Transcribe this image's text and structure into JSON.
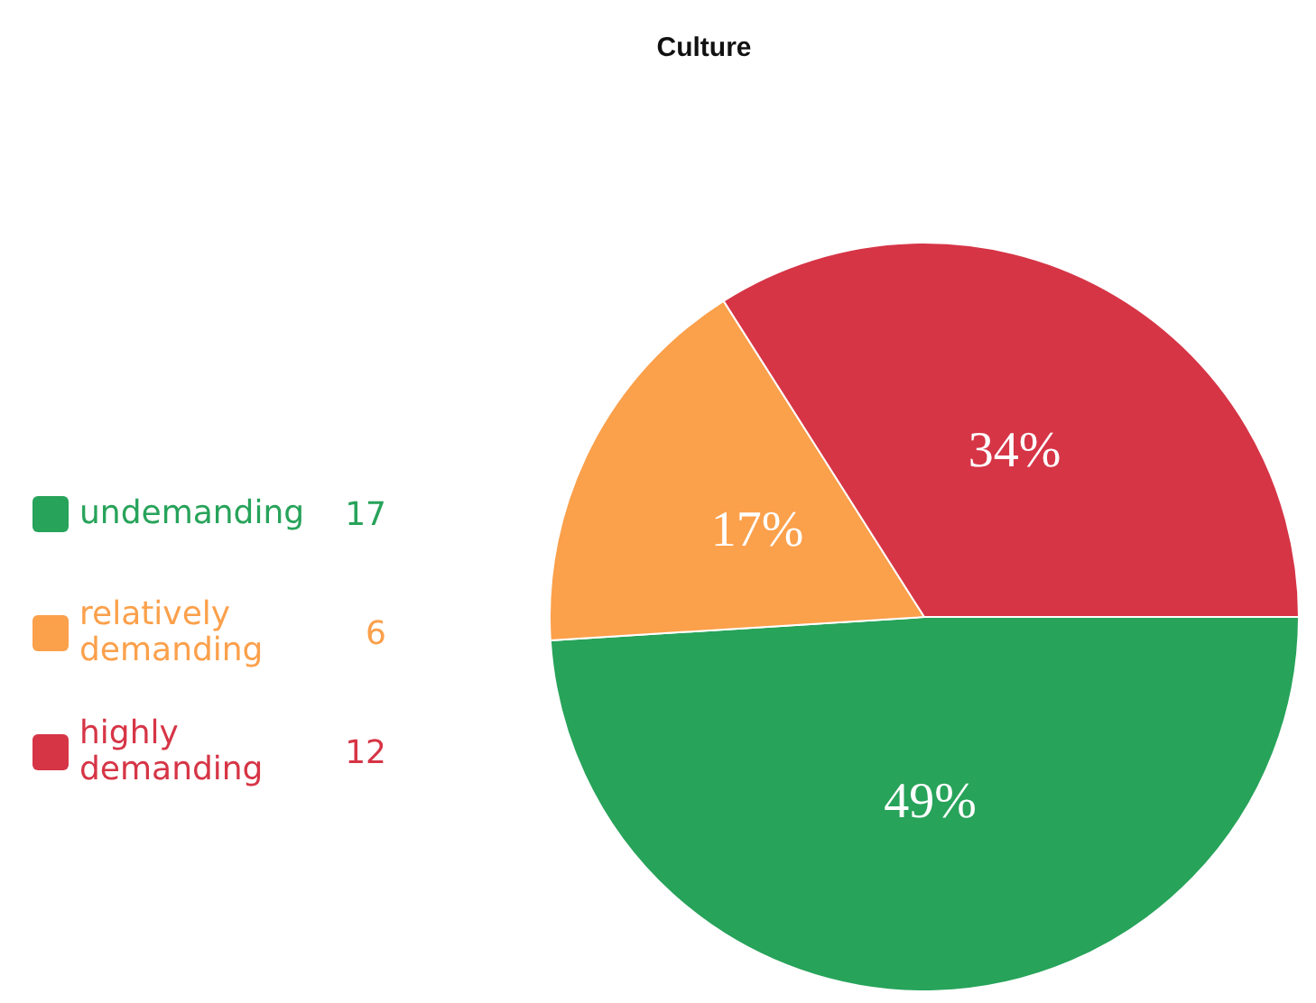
{
  "chart_data": {
    "type": "pie",
    "title": "Culture",
    "categories": [
      "undemanding",
      "relatively demanding",
      "highly demanding"
    ],
    "values": [
      49,
      17,
      34
    ],
    "colors": [
      "#27a35a",
      "#fba04b",
      "#d63546"
    ],
    "value_labels": [
      "49%",
      "17%",
      "34%"
    ],
    "annotations": [
      "17",
      "6",
      "12"
    ],
    "legend": "left"
  }
}
